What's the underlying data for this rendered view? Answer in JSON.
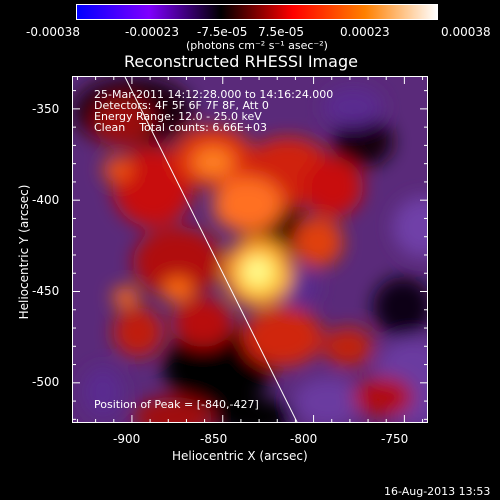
{
  "title": "Reconstructed RHESSI Image",
  "colorbar": {
    "ticks": [
      "-0.00038",
      "-0.00023",
      "-7.5e-05",
      "7.5e-05",
      "0.00023",
      "0.00038"
    ],
    "unit_label": "(photons cm⁻² s⁻¹ asec⁻²)",
    "range": [
      -0.00038,
      0.00038
    ],
    "colors": [
      "#0000ff",
      "#7f00ff",
      "#000000",
      "#ff0000",
      "#ff8000",
      "#ffffff"
    ]
  },
  "info": {
    "time": "25-Mar-2011 14:12:28.000 to 14:16:24.000",
    "detectors": "Detectors: 4F 5F 6F 7F 8F, Att 0",
    "energy": "Energy Range: 12.0 - 25.0 keV",
    "clean": "Clean    Total counts: 6.66E+03"
  },
  "peak_label": "Position of Peak = [-840,-427]",
  "axes": {
    "xlabel": "Heliocentric X (arcsec)",
    "ylabel": "Heliocentric Y (arcsec)",
    "xticks": [
      "-900",
      "-850",
      "-800",
      "-750"
    ],
    "yticks": [
      "-350",
      "-400",
      "-450",
      "-500"
    ],
    "xrange": [
      -933,
      -737
    ],
    "yrange": [
      -522,
      -332
    ]
  },
  "footer": "16-Aug-2013 13:53",
  "chart_data": {
    "type": "heatmap",
    "title": "Reconstructed RHESSI Image",
    "xlabel": "Heliocentric X (arcsec)",
    "ylabel": "Heliocentric Y (arcsec)",
    "xlim": [
      -933,
      -737
    ],
    "ylim": [
      -522,
      -332
    ],
    "peak": [
      -840,
      -427
    ],
    "colormap_range": [
      -0.00038,
      0.00038
    ]
  }
}
